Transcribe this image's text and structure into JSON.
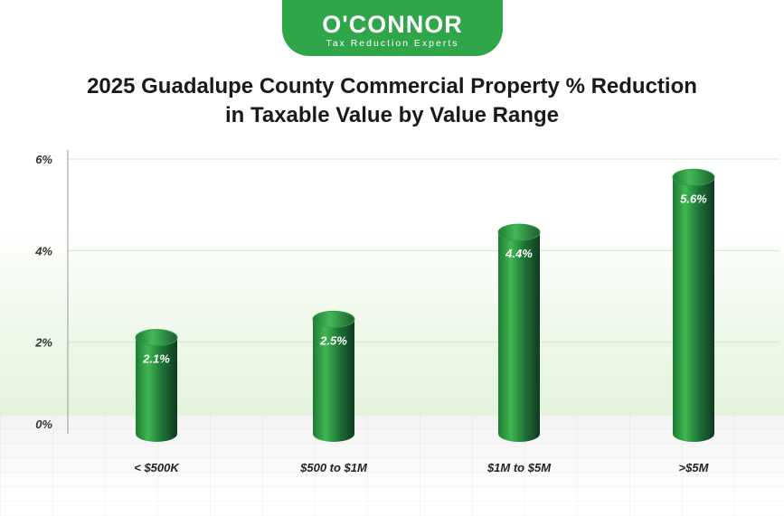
{
  "logo": {
    "name": "O'CONNOR",
    "tagline": "Tax Reduction Experts"
  },
  "colors": {
    "brand_green": "#2fa64a",
    "bar_light": "#3fb752",
    "bar_dark": "#0f3a22"
  },
  "chart_data": {
    "type": "bar",
    "title_line1": "2025 Guadalupe County Commercial Property % Reduction",
    "title_line2": "in Taxable Value by Value Range",
    "categories": [
      "< $500K",
      "$500 to $1M",
      "$1M to $5M",
      ">$5M"
    ],
    "values": [
      2.1,
      2.5,
      4.4,
      5.6
    ],
    "value_labels": [
      "2.1%",
      "2.5%",
      "4.4%",
      "5.6%"
    ],
    "y_ticks": [
      "0%",
      "2%",
      "4%",
      "6%"
    ],
    "y_tick_values": [
      0,
      2,
      4,
      6
    ],
    "ylim": [
      0,
      6
    ],
    "xlabel": "",
    "ylabel": "",
    "grid": true,
    "legend": "none"
  }
}
